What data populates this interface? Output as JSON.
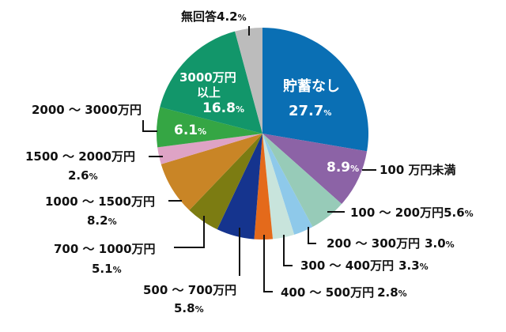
{
  "chart_data": {
    "type": "pie",
    "title": "",
    "center": [
      332,
      169
    ],
    "radius": 134,
    "start_angle_deg": 0,
    "direction": "clockwise",
    "slices": [
      {
        "label": "貯蓄なし",
        "value": 27.7,
        "color": "#0a6fb4"
      },
      {
        "label": "100万円未満",
        "value": 8.9,
        "color": "#8c63a6"
      },
      {
        "label": "100～200万円",
        "value": 5.6,
        "color": "#97cbb8"
      },
      {
        "label": "200～300万円",
        "value": 3.0,
        "color": "#8ec9ea"
      },
      {
        "label": "300～400万円",
        "value": 3.3,
        "color": "#c8e4dc"
      },
      {
        "label": "400～500万円",
        "value": 2.8,
        "color": "#e46a1b"
      },
      {
        "label": "500～700万円",
        "value": 5.8,
        "color": "#15348e"
      },
      {
        "label": "700～1000万円",
        "value": 5.1,
        "color": "#7c7c12"
      },
      {
        "label": "1000～1500万円",
        "value": 8.2,
        "color": "#c98526"
      },
      {
        "label": "1500～2000万円",
        "value": 2.6,
        "color": "#dea3c5"
      },
      {
        "label": "2000～3000万円",
        "value": 6.1,
        "color": "#35a644"
      },
      {
        "label": "3000万円以上",
        "value": 16.8,
        "color": "#12966a"
      },
      {
        "label": "無回答",
        "value": 4.2,
        "color": "#bcbcbc"
      }
    ]
  },
  "labels": {
    "none": {
      "name": "貯蓄なし",
      "pct": "27.7",
      "unit": "%"
    },
    "lt100": {
      "name": "100 万円未満",
      "pct": "8.9",
      "unit": "%"
    },
    "r100": {
      "name": "100 ～ 200万円",
      "pct": "5.6",
      "unit": "%"
    },
    "r200": {
      "name": "200 ～ 300万円",
      "pct": "3.0",
      "unit": "%"
    },
    "r300": {
      "name": "300 ～ 400万円",
      "pct": "3.3",
      "unit": "%"
    },
    "r400": {
      "name": "400 ～ 500万円",
      "pct": "2.8",
      "unit": "%"
    },
    "r500": {
      "name": "500 ～ 700万円",
      "pct": "5.8",
      "unit": "%"
    },
    "r700": {
      "name": "700 ～ 1000万円",
      "pct": "5.1",
      "unit": "%"
    },
    "r1000": {
      "name": "1000 ～ 1500万円",
      "pct": "8.2",
      "unit": "%"
    },
    "r1500": {
      "name": "1500 ～ 2000万円",
      "pct": "2.6",
      "unit": "%"
    },
    "r2000": {
      "name": "2000 ～ 3000万円",
      "pct": "6.1",
      "unit": "%"
    },
    "r3000": {
      "name1": "3000万円",
      "name2": "以上",
      "pct": "16.8",
      "unit": "%"
    },
    "noans": {
      "name": "無回答",
      "pct": "4.2",
      "unit": "%"
    }
  }
}
